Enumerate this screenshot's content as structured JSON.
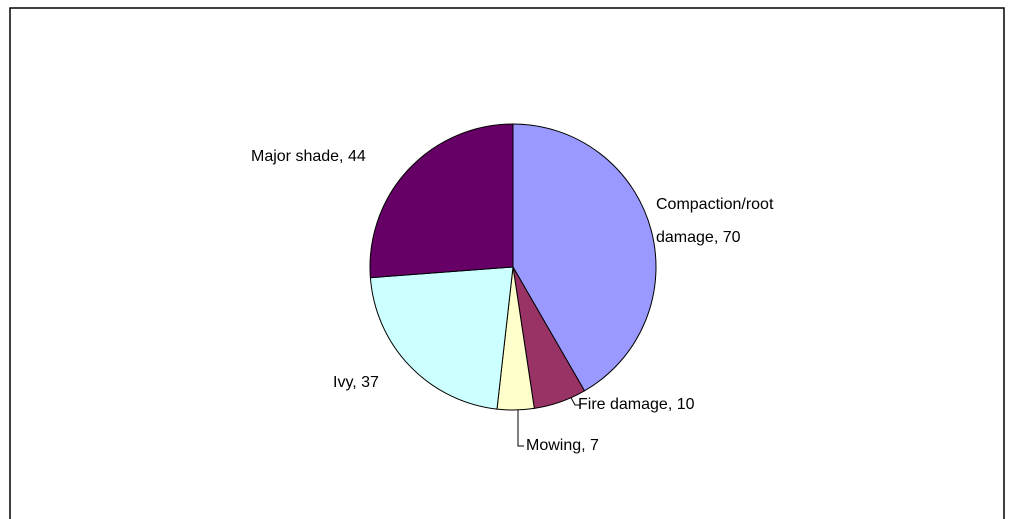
{
  "chart_data": {
    "type": "pie",
    "categories": [
      "Compaction/root damage",
      "Fire damage",
      "Mowing",
      "Ivy",
      "Major shade"
    ],
    "values": [
      70,
      10,
      7,
      37,
      44
    ],
    "value_labels": [
      "Compaction/root damage, 70",
      "Fire damage, 10",
      "Mowing, 7",
      "Ivy, 37",
      "Major shade, 44"
    ],
    "colors": [
      "#9999ff",
      "#993366",
      "#ffffcc",
      "#ccffff",
      "#660066"
    ]
  }
}
